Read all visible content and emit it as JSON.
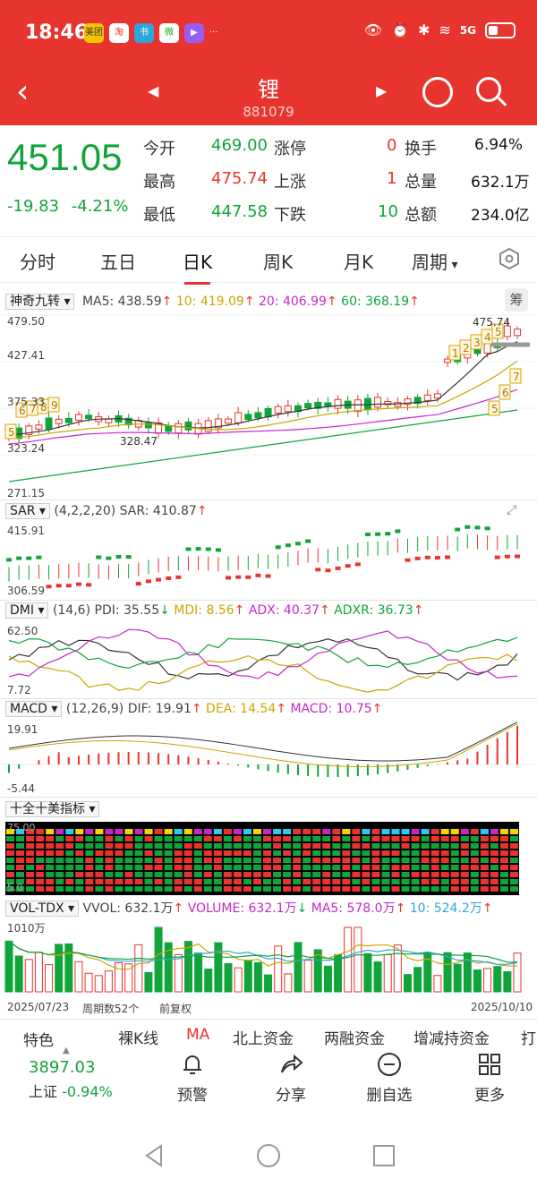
{
  "status": {
    "time": "18:46",
    "network": "5G",
    "app_icons": [
      "美团",
      "淘",
      "书",
      "微",
      "▶"
    ],
    "more": "···"
  },
  "header": {
    "title": "锂",
    "code": "881079"
  },
  "quote": {
    "price": "451.05",
    "change": "-19.83",
    "change_pct": "-4.21%",
    "open_label": "今开",
    "open": "469.00",
    "high_label": "最高",
    "high": "475.74",
    "low_label": "最低",
    "low": "447.58",
    "limit_up_label": "涨停",
    "limit_up": "0",
    "up_label": "上涨",
    "up": "1",
    "down_label": "下跌",
    "down": "10",
    "turnover_label": "换手",
    "turnover": "6.94%",
    "volume_label": "总量",
    "volume": "632.1万",
    "amount_label": "总额",
    "amount": "234.0亿"
  },
  "tabs": [
    "分时",
    "五日",
    "日K",
    "周K",
    "月K",
    "周期"
  ],
  "active_tab": "日K",
  "kline_pane": {
    "indicator": "神奇九转",
    "ma5": "MA5: 438.59",
    "ma10": "10: 419.09",
    "ma20": "20: 406.99",
    "ma60": "60: 368.19",
    "chip_label": "筹",
    "y_labels": [
      "479.50",
      "427.41",
      "375.33",
      "323.24",
      "271.15"
    ],
    "high_mark": "475.74",
    "low_mark": "328.47",
    "nine_left": [
      "5",
      "6",
      "7",
      "8",
      "9"
    ],
    "nine_right_up": [
      "1",
      "2",
      "3",
      "4",
      "5"
    ],
    "nine_right_down": [
      "5",
      "6",
      "7"
    ]
  },
  "sar_pane": {
    "name": "SAR",
    "params": "(4,2,2,20)",
    "value": "SAR: 410.87",
    "y_top": "415.91",
    "y_bottom": "306.59"
  },
  "dmi_pane": {
    "name": "DMI",
    "params": "(14,6)",
    "pdi": "PDI: 35.55",
    "mdi": "MDI: 8.56",
    "adx": "ADX: 40.37",
    "adxr": "ADXR: 36.73",
    "y_top": "62.50",
    "y_bottom": "7.72"
  },
  "macd_pane": {
    "name": "MACD",
    "params": "(12,26,9)",
    "dif": "DIF: 19.91",
    "dea": "DEA: 14.54",
    "macd": "MACD: 10.75",
    "y_top": "19.91",
    "y_bottom": "-5.44"
  },
  "perfect_pane": {
    "name": "十全十美指标",
    "y_top": "75.00",
    "y_bottom": "5.0"
  },
  "vol_pane": {
    "name": "VOL-TDX",
    "vvol": "VVOL: 632.1万",
    "volume": "VOLUME: 632.1万",
    "ma5": "MA5: 578.0万",
    "ma10": "10: 524.2万",
    "y_top": "1010万"
  },
  "range": {
    "start": "2025/07/23",
    "count": "周期数52个",
    "adjust": "前复权",
    "end": "2025/10/10"
  },
  "bottom_tabs": [
    "特色",
    "裸K线",
    "MA",
    "北上资金",
    "两融资金",
    "增减持资金",
    "打"
  ],
  "index": {
    "value": "3897.03",
    "name": "上证",
    "pct": "-0.94%"
  },
  "toolbar": [
    "预警",
    "分享",
    "删自选",
    "更多"
  ],
  "colors": {
    "header": "#e8342e",
    "up": "#e8342e",
    "down": "#11a43b"
  }
}
